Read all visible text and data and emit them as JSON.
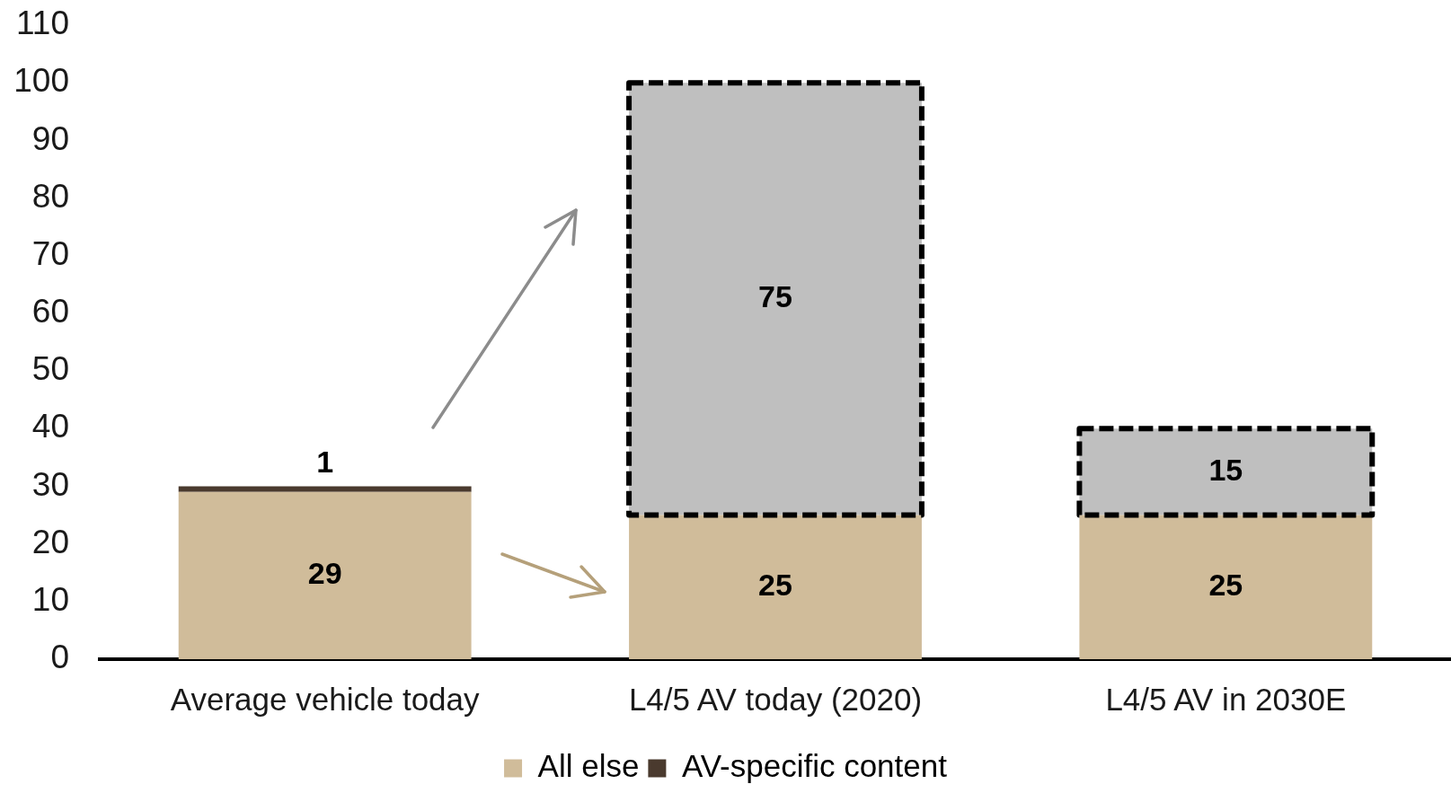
{
  "chart_data": {
    "type": "bar",
    "stacked": true,
    "categories": [
      "Average vehicle today",
      "L4/5 AV today (2020)",
      "L4/5 AV in 2030E"
    ],
    "series": [
      {
        "name": "All else",
        "color": "#d0bc9a",
        "values": [
          29,
          25,
          25
        ]
      },
      {
        "name": "AV-specific content",
        "color": "#4a3a2e",
        "colors": [
          "#4a3a2e",
          "#bfbfbf",
          "#bfbfbf"
        ],
        "line_style": [
          null,
          "dashed",
          "dashed"
        ],
        "values": [
          1,
          75,
          15
        ]
      }
    ],
    "ylim": [
      0,
      110
    ],
    "yticks": [
      0,
      10,
      20,
      30,
      40,
      50,
      60,
      70,
      80,
      90,
      100,
      110
    ],
    "grid": false,
    "legend": "bottom",
    "data_labels": true
  }
}
